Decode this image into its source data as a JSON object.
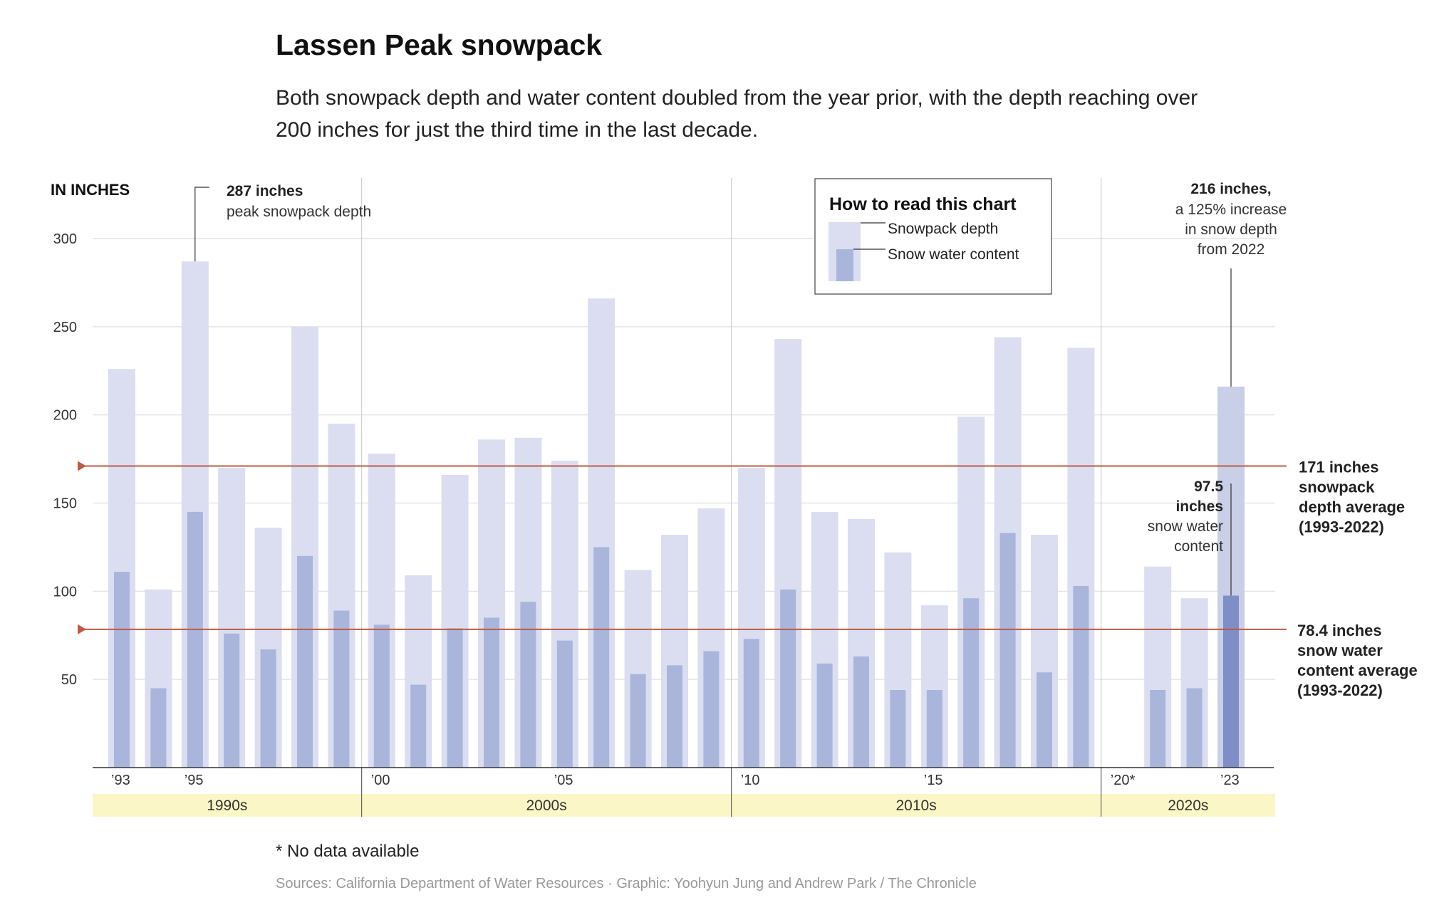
{
  "title": "Lassen Peak snowpack",
  "subtitle": "Both snowpack depth and water content doubled from the year prior, with the depth reaching over 200 inches for just the third time in the last decade.",
  "footnote": "* No data available",
  "sources": "Sources: California Department of Water Resources · Graphic: Yoohyun Jung and Andrew Park / The Chronicle",
  "colors": {
    "depth": "#dadef0",
    "water": "#a9b5db",
    "depth_highlight": "#c8cfe6",
    "water_highlight": "#7f8ec6",
    "average_line": "#c0593f",
    "decade_band": "#faf6c6"
  },
  "chart_data": {
    "type": "bar",
    "ylabel": "IN INCHES",
    "ylim": [
      0,
      300
    ],
    "y_ticks": [
      "50",
      "100",
      "150",
      "200",
      "250",
      "300"
    ],
    "categories": [
      "1993",
      "1994",
      "1995",
      "1996",
      "1997",
      "1998",
      "1999",
      "2000",
      "2001",
      "2002",
      "2003",
      "2004",
      "2005",
      "2006",
      "2007",
      "2008",
      "2009",
      "2010",
      "2011",
      "2012",
      "2013",
      "2014",
      "2015",
      "2016",
      "2017",
      "2018",
      "2019",
      "2020",
      "2021",
      "2022",
      "2023"
    ],
    "x_tick_labels": [
      {
        "category": "1993",
        "label": "’93"
      },
      {
        "category": "1995",
        "label": "’95"
      },
      {
        "category": "2000",
        "label": "’00"
      },
      {
        "category": "2005",
        "label": "’05"
      },
      {
        "category": "2010",
        "label": "’10"
      },
      {
        "category": "2015",
        "label": "’15"
      },
      {
        "category": "2020",
        "label": "’20*"
      },
      {
        "category": "2023",
        "label": "’23"
      }
    ],
    "decades": [
      {
        "label": "1990s",
        "from": "1993",
        "to": "1999"
      },
      {
        "label": "2000s",
        "from": "2000",
        "to": "2009"
      },
      {
        "label": "2010s",
        "from": "2010",
        "to": "2019"
      },
      {
        "label": "2020s",
        "from": "2020",
        "to": "2023"
      }
    ],
    "series": [
      {
        "name": "Snowpack depth",
        "values": [
          226,
          101,
          287,
          170,
          136,
          250,
          195,
          178,
          109,
          166,
          186,
          187,
          174,
          266,
          112,
          132,
          147,
          170,
          243,
          145,
          141,
          122,
          92,
          199,
          244,
          132,
          238,
          null,
          114,
          96,
          216
        ]
      },
      {
        "name": "Snow water content",
        "values": [
          111,
          45,
          145,
          76,
          67,
          120,
          89,
          81,
          47,
          79,
          85,
          94,
          72,
          125,
          53,
          58,
          66,
          73,
          101,
          59,
          63,
          44,
          44,
          96,
          133,
          54,
          103,
          null,
          44,
          45,
          97.5
        ]
      }
    ],
    "averages": [
      {
        "value": 171,
        "label_lines": [
          "171 inches",
          "snowpack",
          "depth average",
          "(1993-2022)"
        ]
      },
      {
        "value": 78.4,
        "label_lines": [
          "78.4 inches",
          "snow water",
          "content average",
          "(1993-2022)"
        ]
      }
    ],
    "legend": {
      "title": "How to read this chart",
      "depth_label": "Snowpack depth",
      "water_label": "Snow water content",
      "position": "top-center"
    },
    "annotations": {
      "peak": {
        "category": "1995",
        "value": 287,
        "bold": "287 inches",
        "text": "peak snowpack depth"
      },
      "latest_depth": {
        "category": "2023",
        "value": 216,
        "bold": "216 inches,",
        "lines": [
          "a 125% increase",
          "in snow depth",
          "from 2022"
        ]
      },
      "latest_water": {
        "category": "2023",
        "value": 97.5,
        "bold_lines": [
          "97.5",
          "inches"
        ],
        "lines": [
          "snow water",
          "content"
        ]
      }
    }
  }
}
